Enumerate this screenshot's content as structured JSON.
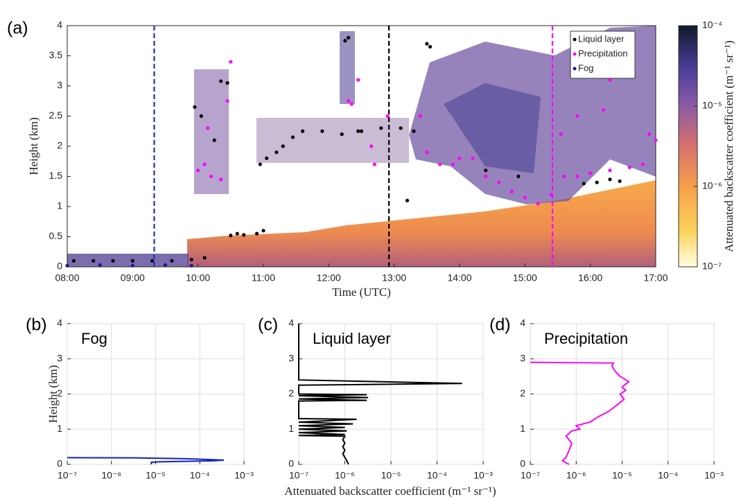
{
  "chart_data": [
    {
      "type": "scatter",
      "panel_label": "(a)",
      "xlabel": "Time (UTC)",
      "ylabel": "Height (km)",
      "xlim": [
        8,
        17
      ],
      "xticks": [
        {
          "value": 8,
          "label": "08:00"
        },
        {
          "value": 9,
          "label": "09:00"
        },
        {
          "value": 10,
          "label": "10:00"
        },
        {
          "value": 11,
          "label": "11:00"
        },
        {
          "value": 12,
          "label": "12:00"
        },
        {
          "value": 13,
          "label": "13:00"
        },
        {
          "value": 14,
          "label": "14:00"
        },
        {
          "value": 15,
          "label": "15:00"
        },
        {
          "value": 16,
          "label": "16:00"
        },
        {
          "value": 17,
          "label": "17:00"
        }
      ],
      "ylim": [
        0,
        4
      ],
      "yticks": [
        0,
        0.5,
        1,
        1.5,
        2,
        2.5,
        3,
        3.5,
        4
      ],
      "grid": false,
      "legend": "upper right",
      "series": [
        {
          "name": "Liquid layer",
          "color": "#000000",
          "x": [
            8.1,
            8.4,
            8.7,
            9.0,
            9.3,
            9.6,
            9.9,
            10.1,
            9.95,
            10.05,
            10.25,
            10.35,
            10.45,
            10.5,
            10.6,
            10.7,
            10.9,
            11.0,
            11.05,
            10.95,
            11.2,
            11.3,
            11.45,
            11.6,
            11.9,
            12.2,
            12.45,
            12.5,
            12.8,
            13.1,
            13.3,
            12.3,
            12.25,
            13.5,
            13.55,
            13.2,
            14.4,
            14.9,
            15.9,
            16.1,
            16.3,
            16.45
          ],
          "y": [
            0.1,
            0.1,
            0.1,
            0.1,
            0.1,
            0.1,
            0.12,
            0.15,
            2.65,
            2.5,
            2.1,
            3.08,
            3.05,
            0.52,
            0.55,
            0.53,
            0.55,
            0.6,
            1.8,
            1.7,
            1.9,
            2.0,
            2.15,
            2.25,
            2.25,
            2.2,
            2.25,
            2.25,
            2.3,
            2.3,
            2.25,
            3.8,
            3.75,
            3.7,
            3.65,
            1.1,
            1.6,
            1.5,
            1.38,
            1.4,
            1.45,
            1.42
          ]
        },
        {
          "name": "Precipitation",
          "color": "#ff00ff",
          "x": [
            10.0,
            10.1,
            10.2,
            10.35,
            10.15,
            10.45,
            10.5,
            12.3,
            12.35,
            12.45,
            12.9,
            12.7,
            12.65,
            13.4,
            13.5,
            13.7,
            13.9,
            14.0,
            14.2,
            14.4,
            14.6,
            14.8,
            15.0,
            15.2,
            15.4,
            15.6,
            15.8,
            16.0,
            16.3,
            16.6,
            16.8,
            17.0,
            16.9,
            15.55,
            15.8,
            16.2,
            16.3
          ],
          "y": [
            1.6,
            1.7,
            1.5,
            1.45,
            2.3,
            2.75,
            3.4,
            2.75,
            2.7,
            3.1,
            2.5,
            1.7,
            2.0,
            2.5,
            1.9,
            1.7,
            1.7,
            1.8,
            1.8,
            1.5,
            1.4,
            1.25,
            1.15,
            1.05,
            1.2,
            1.5,
            1.5,
            1.55,
            1.6,
            1.65,
            1.7,
            2.1,
            2.2,
            2.2,
            2.5,
            2.6,
            3.1
          ]
        },
        {
          "name": "Fog",
          "color": "#1a1a9a",
          "x": [
            8.0,
            8.5,
            9.0,
            9.5,
            9.9
          ],
          "y": [
            0.02,
            0.03,
            0.02,
            0.03,
            0.02
          ]
        }
      ],
      "vlines": [
        {
          "x": 9.33,
          "color": "#1f2fbf"
        },
        {
          "x": 12.92,
          "color": "#000000"
        },
        {
          "x": 15.42,
          "color": "#ff00ff"
        }
      ],
      "colorbar": {
        "label": "Attenuated backscatter coefficient (m⁻¹ sr⁻¹)",
        "scale": "log",
        "lim": [
          1e-07,
          0.0001
        ],
        "ticks": [
          {
            "value": 1e-07,
            "label": "10⁻⁷"
          },
          {
            "value": 1e-06,
            "label": "10⁻⁶"
          },
          {
            "value": 1e-05,
            "label": "10⁻⁵"
          },
          {
            "value": 0.0001,
            "label": "10⁻⁴"
          }
        ]
      }
    },
    {
      "type": "line",
      "panel_label": "(b)",
      "title": "Fog",
      "ylabel": "Height (km)",
      "xscale": "log",
      "grid": true,
      "color": "#0a1fd0",
      "xlim": [
        1e-07,
        0.001
      ],
      "xticks": [
        {
          "value": 1e-07,
          "label": "10⁻⁷"
        },
        {
          "value": 1e-06,
          "label": "10⁻⁶"
        },
        {
          "value": 1e-05,
          "label": "10⁻⁵"
        },
        {
          "value": 0.0001,
          "label": "10⁻⁴"
        },
        {
          "value": 0.001,
          "label": "10⁻³"
        }
      ],
      "ylim": [
        0,
        4
      ],
      "yticks": [
        0,
        1,
        2,
        3,
        4
      ],
      "values": [
        1e-07,
        3e-06,
        5e-05,
        0.00035,
        0.0002,
        3e-05,
        1.2e-05,
        8e-06,
        8e-06
      ],
      "heights": [
        0.19,
        0.185,
        0.16,
        0.12,
        0.1,
        0.08,
        0.07,
        0.06,
        0.0
      ]
    },
    {
      "type": "line",
      "panel_label": "(c)",
      "title": "Liquid layer",
      "xlabel": "Attenuated backscatter coefficient (m⁻¹ sr⁻¹)",
      "xscale": "log",
      "grid": true,
      "color": "#000000",
      "xlim": [
        1e-07,
        0.001
      ],
      "xticks": [
        {
          "value": 1e-07,
          "label": "10⁻⁷"
        },
        {
          "value": 1e-06,
          "label": "10⁻⁶"
        },
        {
          "value": 1e-05,
          "label": "10⁻⁵"
        },
        {
          "value": 0.0001,
          "label": "10⁻⁴"
        },
        {
          "value": 0.001,
          "label": "10⁻³"
        }
      ],
      "ylim": [
        0,
        4
      ],
      "yticks": [
        0,
        1,
        2,
        3,
        4
      ],
      "values": [
        1.2e-06,
        1.1e-06,
        1e-06,
        9e-07,
        1e-06,
        9e-07,
        1e-06,
        9e-07,
        1e-06,
        1e-07,
        1e-06,
        1e-07,
        1.1e-06,
        1e-07,
        1e-06,
        1e-07,
        1.5e-06,
        1e-07,
        1.8e-06,
        1e-07,
        1e-07,
        3e-06,
        1e-07,
        3.2e-06,
        1e-07,
        3e-06,
        1e-07,
        1e-07,
        0.00035,
        1e-07,
        1e-07
      ],
      "heights": [
        0,
        0.1,
        0.2,
        0.3,
        0.4,
        0.5,
        0.6,
        0.7,
        0.8,
        0.82,
        0.85,
        0.9,
        0.95,
        1.0,
        1.05,
        1.1,
        1.15,
        1.2,
        1.28,
        1.3,
        1.8,
        1.82,
        1.86,
        1.9,
        1.95,
        1.98,
        2.0,
        2.25,
        2.3,
        2.4,
        4
      ]
    },
    {
      "type": "line",
      "panel_label": "(d)",
      "title": "Precipitation",
      "xscale": "log",
      "grid": true,
      "color": "#ff00ff",
      "xlim": [
        1e-07,
        0.001
      ],
      "xticks": [
        {
          "value": 1e-07,
          "label": "10⁻⁷"
        },
        {
          "value": 1e-06,
          "label": "10⁻⁶"
        },
        {
          "value": 1e-05,
          "label": "10⁻⁵"
        },
        {
          "value": 0.0001,
          "label": "10⁻⁴"
        },
        {
          "value": 0.001,
          "label": "10⁻³"
        }
      ],
      "ylim": [
        0,
        4
      ],
      "yticks": [
        0,
        1,
        2,
        3,
        4
      ],
      "values": [
        7e-07,
        5e-07,
        6e-07,
        7e-07,
        8e-07,
        6e-07,
        8e-07,
        1.2e-06,
        1e-06,
        2e-06,
        3e-06,
        5e-06,
        8e-06,
        1.1e-05,
        9e-06,
        1.2e-05,
        1e-05,
        1.4e-05,
        9e-06,
        7e-06,
        6e-06,
        6.5e-06,
        1e-07
      ],
      "heights": [
        0,
        0.1,
        0.2,
        0.4,
        0.6,
        0.8,
        0.95,
        1.0,
        1.1,
        1.2,
        1.35,
        1.5,
        1.7,
        1.85,
        2.0,
        2.1,
        2.2,
        2.35,
        2.5,
        2.65,
        2.8,
        2.88,
        2.9
      ]
    }
  ]
}
